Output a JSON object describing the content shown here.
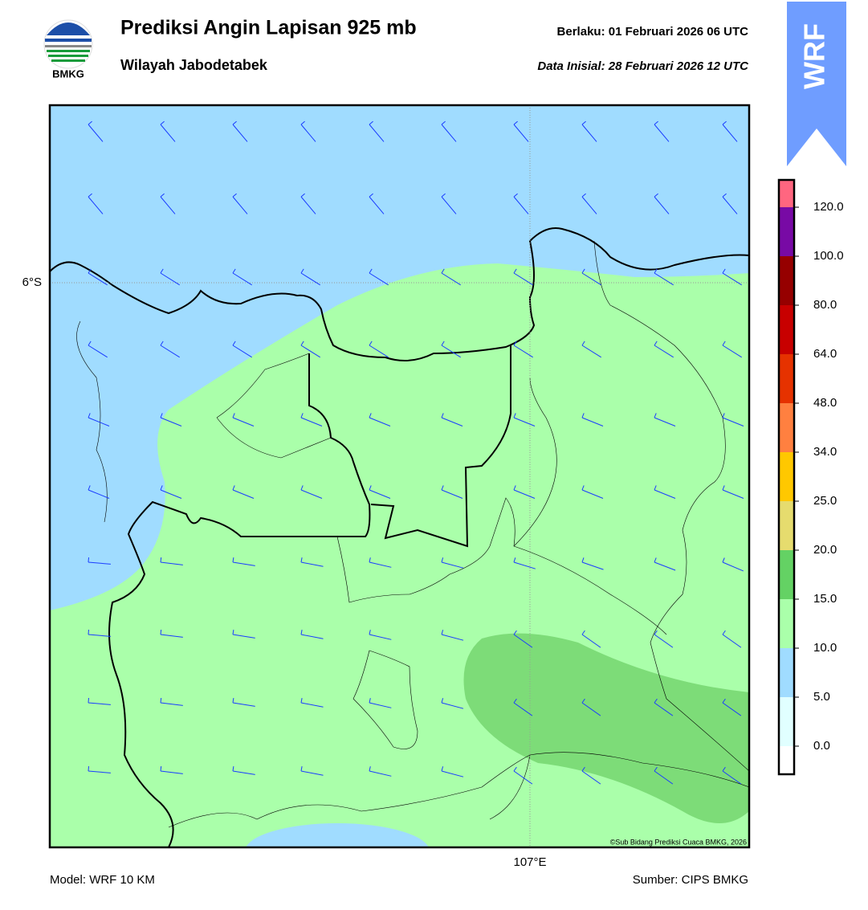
{
  "header": {
    "title": "Prediksi Angin Lapisan 925 mb",
    "subtitle": "Wilayah Jabodetabek",
    "valid": "Berlaku:  01 Februari 2026 06 UTC",
    "initial": "Data Inisial:  28 Februari 2026 12 UTC",
    "logo": "BMKG",
    "badge": "WRF"
  },
  "map": {
    "lat_label": "6°S",
    "lon_label": "107°E",
    "credit": "©Sub Bidang Prediksi Cuaca BMKG, 2026"
  },
  "colorbar": {
    "labels": [
      "120.0",
      "100.0",
      "80.0",
      "64.0",
      "48.0",
      "34.0",
      "25.0",
      "20.0",
      "15.0",
      "10.0",
      "5.0",
      "0.0"
    ],
    "colors": [
      "#ff6680",
      "#780aa5",
      "#960000",
      "#c80000",
      "#e63200",
      "#ff8040",
      "#ffc800",
      "#e6dc6e",
      "#64d264",
      "#aaffaa",
      "#a0dcff",
      "#e1ffff",
      "#ffffff"
    ]
  },
  "footer": {
    "model": "Model: WRF 10 KM",
    "source": "Sumber: CIPS BMKG"
  }
}
